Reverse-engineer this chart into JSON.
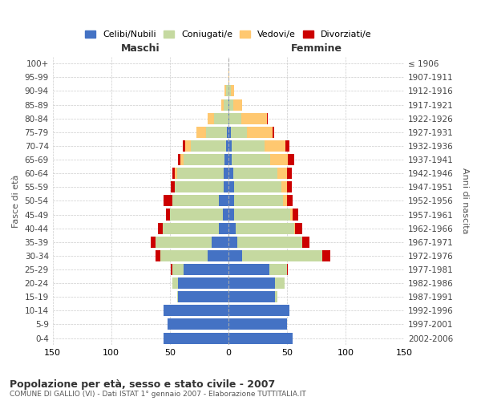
{
  "age_groups": [
    "0-4",
    "5-9",
    "10-14",
    "15-19",
    "20-24",
    "25-29",
    "30-34",
    "35-39",
    "40-44",
    "45-49",
    "50-54",
    "55-59",
    "60-64",
    "65-69",
    "70-74",
    "75-79",
    "80-84",
    "85-89",
    "90-94",
    "95-99",
    "100+"
  ],
  "birth_years": [
    "2002-2006",
    "1997-2001",
    "1992-1996",
    "1987-1991",
    "1982-1986",
    "1977-1981",
    "1972-1976",
    "1967-1971",
    "1962-1966",
    "1957-1961",
    "1952-1956",
    "1947-1951",
    "1942-1946",
    "1937-1941",
    "1932-1936",
    "1927-1931",
    "1922-1926",
    "1917-1921",
    "1912-1916",
    "1907-1911",
    "≤ 1906"
  ],
  "male": {
    "celibi": [
      55,
      52,
      55,
      43,
      43,
      38,
      18,
      14,
      8,
      5,
      8,
      4,
      4,
      3,
      2,
      1,
      0,
      0,
      0,
      0,
      0
    ],
    "coniugati": [
      0,
      0,
      0,
      1,
      5,
      10,
      40,
      48,
      48,
      45,
      40,
      42,
      40,
      35,
      30,
      18,
      12,
      4,
      2,
      0,
      0
    ],
    "vedovi": [
      0,
      0,
      0,
      0,
      0,
      0,
      0,
      0,
      0,
      0,
      0,
      0,
      2,
      3,
      5,
      8,
      6,
      2,
      1,
      0,
      0
    ],
    "divorziati": [
      0,
      0,
      0,
      0,
      0,
      1,
      4,
      4,
      4,
      3,
      7,
      3,
      2,
      2,
      2,
      0,
      0,
      0,
      0,
      0,
      0
    ]
  },
  "female": {
    "nubili": [
      55,
      50,
      52,
      40,
      40,
      35,
      12,
      8,
      6,
      5,
      5,
      5,
      4,
      3,
      3,
      2,
      1,
      1,
      0,
      0,
      0
    ],
    "coniugate": [
      0,
      0,
      0,
      2,
      8,
      15,
      68,
      55,
      50,
      48,
      42,
      40,
      38,
      33,
      28,
      14,
      10,
      3,
      2,
      0,
      0
    ],
    "vedove": [
      0,
      0,
      0,
      0,
      0,
      0,
      0,
      0,
      1,
      2,
      3,
      5,
      8,
      15,
      18,
      22,
      22,
      8,
      3,
      1,
      0
    ],
    "divorziate": [
      0,
      0,
      0,
      0,
      0,
      1,
      7,
      6,
      6,
      5,
      5,
      4,
      4,
      5,
      3,
      1,
      1,
      0,
      0,
      0,
      0
    ]
  },
  "colors": {
    "celibi_nubili": "#4472c4",
    "coniugati": "#c5d9a0",
    "vedovi": "#ffc870",
    "divorziati": "#cc0000"
  },
  "title": "Popolazione per età, sesso e stato civile - 2007",
  "subtitle": "COMUNE DI GALLIO (VI) - Dati ISTAT 1° gennaio 2007 - Elaborazione TUTTITALIA.IT",
  "xlabel_left": "Maschi",
  "xlabel_right": "Femmine",
  "ylabel_left": "Fasce di età",
  "ylabel_right": "Anni di nascita",
  "xlim": 150,
  "legend_labels": [
    "Celibi/Nubili",
    "Coniugati/e",
    "Vedovi/e",
    "Divorziati/e"
  ],
  "background_color": "#ffffff",
  "grid_color": "#cccccc"
}
